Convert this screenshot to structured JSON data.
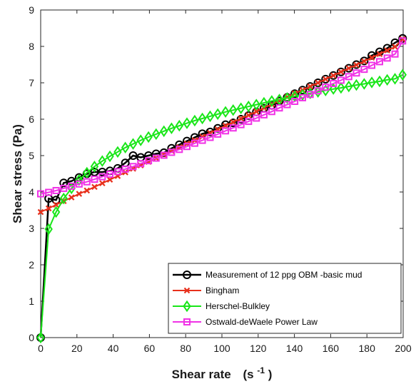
{
  "chart_data": {
    "type": "line",
    "xlabel": "Shear rate",
    "xlabel_unit": "(s",
    "xlabel_unit_sup": "-1",
    "xlabel_unit_close": ")",
    "ylabel": "Shear stress (Pa)",
    "xlim": [
      0,
      200
    ],
    "ylim": [
      0,
      9
    ],
    "xticks": [
      "0",
      "20",
      "40",
      "60",
      "80",
      "100",
      "120",
      "140",
      "160",
      "180",
      "200"
    ],
    "yticks": [
      "0",
      "1",
      "2",
      "3",
      "4",
      "5",
      "6",
      "7",
      "8",
      "9"
    ],
    "grid": false,
    "legend_position": "bottom-right",
    "series": [
      {
        "name": "Measurement of 12 ppg OBM -basic mud",
        "color": "#000000",
        "marker": "circle",
        "x": [
          0,
          4.4,
          8.5,
          12.7,
          17,
          21.2,
          25.5,
          29.7,
          34,
          38.2,
          42.5,
          46.7,
          51,
          55.2,
          59.5,
          63.7,
          68,
          72.2,
          76.5,
          80.7,
          85,
          89.2,
          93.5,
          97.7,
          102,
          106.2,
          110.5,
          114.7,
          119,
          123.2,
          127.5,
          131.7,
          136,
          140.2,
          144.5,
          148.7,
          153,
          157.2,
          161.5,
          165.7,
          170,
          174.2,
          178.5,
          182.7,
          187,
          191.2,
          195.5,
          199.7
        ],
        "y": [
          0,
          3.82,
          3.78,
          4.25,
          4.3,
          4.4,
          4.5,
          4.55,
          4.55,
          4.58,
          4.65,
          4.8,
          5.0,
          4.95,
          5.0,
          5.05,
          5.08,
          5.2,
          5.3,
          5.4,
          5.5,
          5.6,
          5.65,
          5.75,
          5.85,
          5.9,
          6.0,
          6.1,
          6.2,
          6.3,
          6.38,
          6.5,
          6.6,
          6.7,
          6.8,
          6.9,
          7.0,
          7.1,
          7.2,
          7.3,
          7.4,
          7.5,
          7.6,
          7.75,
          7.85,
          7.95,
          8.1,
          8.22
        ]
      },
      {
        "name": "Bingham",
        "color": "#e8301c",
        "marker": "x",
        "x": [
          0,
          4.4,
          8.5,
          12.7,
          17,
          21.2,
          25.5,
          29.7,
          34,
          38.2,
          42.5,
          46.7,
          51,
          55.2,
          59.5,
          63.7,
          68,
          72.2,
          76.5,
          80.7,
          85,
          89.2,
          93.5,
          97.7,
          102,
          106.2,
          110.5,
          114.7,
          119,
          123.2,
          127.5,
          131.7,
          136,
          140.2,
          144.5,
          148.7,
          153,
          157.2,
          161.5,
          165.7,
          170,
          174.2,
          178.5,
          182.7,
          187,
          191.2,
          195.5,
          199.7
        ],
        "y": [
          3.45,
          3.55,
          3.65,
          3.75,
          3.85,
          3.95,
          4.04,
          4.14,
          4.24,
          4.34,
          4.44,
          4.54,
          4.64,
          4.73,
          4.83,
          4.93,
          5.03,
          5.13,
          5.23,
          5.33,
          5.42,
          5.52,
          5.62,
          5.72,
          5.82,
          5.92,
          6.02,
          6.11,
          6.21,
          6.31,
          6.41,
          6.51,
          6.61,
          6.71,
          6.8,
          6.9,
          7.0,
          7.1,
          7.2,
          7.3,
          7.4,
          7.49,
          7.59,
          7.69,
          7.79,
          7.89,
          7.99,
          8.2
        ]
      },
      {
        "name": "Herschel-Bulkley",
        "color": "#19e619",
        "marker": "diamond",
        "x": [
          0,
          4.4,
          8.5,
          12.7,
          17,
          21.2,
          25.5,
          29.7,
          34,
          38.2,
          42.5,
          46.7,
          51,
          55.2,
          59.5,
          63.7,
          68,
          72.2,
          76.5,
          80.7,
          85,
          89.2,
          93.5,
          97.7,
          102,
          106.2,
          110.5,
          114.7,
          119,
          123.2,
          127.5,
          131.7,
          136,
          140.2,
          144.5,
          148.7,
          153,
          157.2,
          161.5,
          165.7,
          170,
          174.2,
          178.5,
          182.7,
          187,
          191.2,
          195.5,
          199.7
        ],
        "y": [
          0,
          2.98,
          3.45,
          3.82,
          4.1,
          4.33,
          4.53,
          4.7,
          4.85,
          4.98,
          5.1,
          5.22,
          5.32,
          5.42,
          5.51,
          5.59,
          5.67,
          5.75,
          5.82,
          5.89,
          5.96,
          6.02,
          6.08,
          6.14,
          6.2,
          6.25,
          6.3,
          6.35,
          6.4,
          6.45,
          6.5,
          6.54,
          6.58,
          6.63,
          6.67,
          6.71,
          6.75,
          6.79,
          6.83,
          6.86,
          6.9,
          6.94,
          6.97,
          7.01,
          7.04,
          7.08,
          7.11,
          7.22
        ]
      },
      {
        "name": "Ostwald-deWaele Power Law",
        "color": "#f032e6",
        "marker": "square",
        "x": [
          0,
          4.4,
          8.5,
          12.7,
          17,
          21.2,
          25.5,
          29.7,
          34,
          38.2,
          42.5,
          46.7,
          51,
          55.2,
          59.5,
          63.7,
          68,
          72.2,
          76.5,
          80.7,
          85,
          89.2,
          93.5,
          97.7,
          102,
          106.2,
          110.5,
          114.7,
          119,
          123.2,
          127.5,
          131.7,
          136,
          140.2,
          144.5,
          148.7,
          153,
          157.2,
          161.5,
          165.7,
          170,
          174.2,
          178.5,
          182.7,
          187,
          191.2,
          195.5,
          199.7
        ],
        "y": [
          3.95,
          3.99,
          4.04,
          4.1,
          4.16,
          4.22,
          4.28,
          4.35,
          4.42,
          4.49,
          4.56,
          4.63,
          4.7,
          4.78,
          4.86,
          4.93,
          5.01,
          5.09,
          5.17,
          5.25,
          5.34,
          5.42,
          5.5,
          5.59,
          5.68,
          5.76,
          5.85,
          5.94,
          6.03,
          6.12,
          6.21,
          6.31,
          6.4,
          6.49,
          6.59,
          6.68,
          6.78,
          6.88,
          6.98,
          7.07,
          7.17,
          7.27,
          7.37,
          7.48,
          7.58,
          7.68,
          7.79,
          8.15
        ]
      }
    ]
  }
}
